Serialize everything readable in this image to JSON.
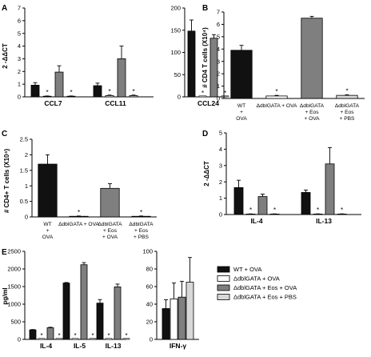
{
  "colors": {
    "s0": "#111111",
    "s1": "#ffffff",
    "s2": "#7f7f7f",
    "s3": "#d8d8d8"
  },
  "legend": {
    "items": [
      {
        "label": "WT + OVA",
        "color": "#111111"
      },
      {
        "label": "ΔdblGATA + OVA",
        "color": "#ffffff"
      },
      {
        "label": "ΔdblGATA + Eos + OVA",
        "color": "#7f7f7f"
      },
      {
        "label": "ΔdblGATA + Eos + PBS",
        "color": "#d8d8d8"
      }
    ]
  },
  "chart_data": [
    {
      "panel": "A",
      "type": "bar",
      "ylabel": "2 -ΔΔCT",
      "ylim": [
        0,
        7
      ],
      "yticks": [
        0,
        1,
        2,
        3,
        4,
        5,
        6,
        7
      ],
      "categories": [
        "CCL7",
        "CCL11"
      ],
      "series": [
        {
          "values": [
            0.92,
            0.88
          ],
          "errors": [
            0.2,
            0.2
          ],
          "star": [
            false,
            false
          ]
        },
        {
          "values": [
            0.05,
            0.1
          ],
          "errors": [
            0.02,
            0.04
          ],
          "star": [
            true,
            true
          ]
        },
        {
          "values": [
            1.95,
            3.0
          ],
          "errors": [
            0.5,
            1.0
          ],
          "star": [
            false,
            false
          ]
        },
        {
          "values": [
            0.05,
            0.1
          ],
          "errors": [
            0.02,
            0.04
          ],
          "star": [
            true,
            true
          ]
        }
      ]
    },
    {
      "panel": "A2",
      "type": "bar",
      "ylim": [
        0,
        200
      ],
      "yticks": [
        0,
        50,
        100,
        150,
        200
      ],
      "categories": [
        "CCL24"
      ],
      "series": [
        {
          "values": [
            148
          ],
          "errors": [
            25
          ],
          "star": [
            false
          ]
        },
        {
          "values": [
            0
          ],
          "errors": [
            0
          ],
          "star": [
            true
          ]
        },
        {
          "values": [
            132
          ],
          "errors": [
            8
          ],
          "star": [
            false
          ]
        },
        {
          "values": [
            0
          ],
          "errors": [
            0
          ],
          "star": [
            true
          ]
        }
      ]
    },
    {
      "panel": "B",
      "type": "bar",
      "ylabel": "# CD4 T cells (X10⁴)",
      "ylim": [
        0,
        7
      ],
      "yticks": [
        0,
        1,
        2,
        3,
        4,
        5,
        6,
        7
      ],
      "groups": [
        {
          "lines": [
            "WT",
            "+",
            "OVA"
          ],
          "value": 3.9,
          "error": 0.4,
          "series": 0,
          "star": false
        },
        {
          "lines": [
            "ΔdblGATA + OVA"
          ],
          "value": 0.2,
          "error": 0.05,
          "series": 1,
          "star": true
        },
        {
          "lines": [
            "ΔdblGATA",
            "+ Eos",
            "+ OVA"
          ],
          "value": 6.5,
          "error": 0.15,
          "series": 2,
          "star": false
        },
        {
          "lines": [
            "ΔdblGATA",
            "+ Eos",
            "+ PBS"
          ],
          "value": 0.25,
          "error": 0.05,
          "series": 3,
          "star": true
        }
      ]
    },
    {
      "panel": "C",
      "type": "bar",
      "ylabel": "# CD4+ T cells (X10⁴)",
      "ylim": [
        0,
        2.5
      ],
      "yticks": [
        0,
        0.5,
        1,
        1.5,
        2,
        2.5
      ],
      "ytick_labels": [
        "0",
        "0.5",
        "1",
        "1.5",
        "2",
        "2.5"
      ],
      "groups": [
        {
          "lines": [
            "WT",
            "+",
            "OVA"
          ],
          "value": 1.7,
          "error": 0.3,
          "series": 0,
          "star": false
        },
        {
          "lines": [
            "ΔdblGATA + OVA"
          ],
          "value": 0.02,
          "error": 0.01,
          "series": 1,
          "star": true
        },
        {
          "lines": [
            "ΔdblGATA",
            "+ Eos",
            "+ OVA"
          ],
          "value": 0.92,
          "error": 0.15,
          "series": 2,
          "star": false
        },
        {
          "lines": [
            "ΔdblGATA",
            "+ Eos",
            "+ PBS"
          ],
          "value": 0.02,
          "error": 0.01,
          "series": 3,
          "star": true
        }
      ]
    },
    {
      "panel": "D",
      "type": "bar",
      "ylabel": "2 -ΔΔCT",
      "ylim": [
        0,
        5
      ],
      "yticks": [
        0,
        1,
        2,
        3,
        4,
        5
      ],
      "categories": [
        "IL-4",
        "IL-13"
      ],
      "series": [
        {
          "values": [
            1.65,
            1.35
          ],
          "errors": [
            0.45,
            0.15
          ],
          "star": [
            false,
            false
          ]
        },
        {
          "values": [
            0.03,
            0.03
          ],
          "errors": [
            0.01,
            0.01
          ],
          "star": [
            true,
            true
          ]
        },
        {
          "values": [
            1.1,
            3.1
          ],
          "errors": [
            0.15,
            1.0
          ],
          "star": [
            false,
            false
          ]
        },
        {
          "values": [
            0.03,
            0.03
          ],
          "errors": [
            0.01,
            0.01
          ],
          "star": [
            true,
            true
          ]
        }
      ]
    },
    {
      "panel": "E",
      "type": "bar",
      "ylabel": "pg/ml",
      "ylim": [
        0,
        2500
      ],
      "yticks": [
        0,
        500,
        1000,
        1500,
        2000,
        2500
      ],
      "categories": [
        "IL-4",
        "IL-5",
        "IL-13"
      ],
      "series": [
        {
          "values": [
            270,
            1600,
            1030
          ],
          "errors": [
            10,
            15,
            100
          ],
          "star": [
            false,
            false,
            false
          ]
        },
        {
          "values": [
            0,
            0,
            0
          ],
          "errors": [
            0,
            0,
            0
          ],
          "star": [
            true,
            true,
            true
          ]
        },
        {
          "values": [
            330,
            2120,
            1490
          ],
          "errors": [
            15,
            60,
            80
          ],
          "star": [
            false,
            false,
            false
          ]
        },
        {
          "values": [
            0,
            0,
            0
          ],
          "errors": [
            0,
            0,
            0
          ],
          "star": [
            true,
            true,
            true
          ]
        }
      ]
    },
    {
      "panel": "E2",
      "type": "bar",
      "ylim": [
        0,
        100
      ],
      "yticks": [
        0,
        20,
        40,
        60,
        80,
        100
      ],
      "categories": [
        "IFN-γ"
      ],
      "series": [
        {
          "values": [
            35
          ],
          "errors": [
            10
          ],
          "star": [
            false
          ]
        },
        {
          "values": [
            46
          ],
          "errors": [
            18
          ],
          "star": [
            false
          ]
        },
        {
          "values": [
            48
          ],
          "errors": [
            18
          ],
          "star": [
            false
          ]
        },
        {
          "values": [
            65
          ],
          "errors": [
            28
          ],
          "star": [
            false
          ]
        }
      ]
    }
  ]
}
